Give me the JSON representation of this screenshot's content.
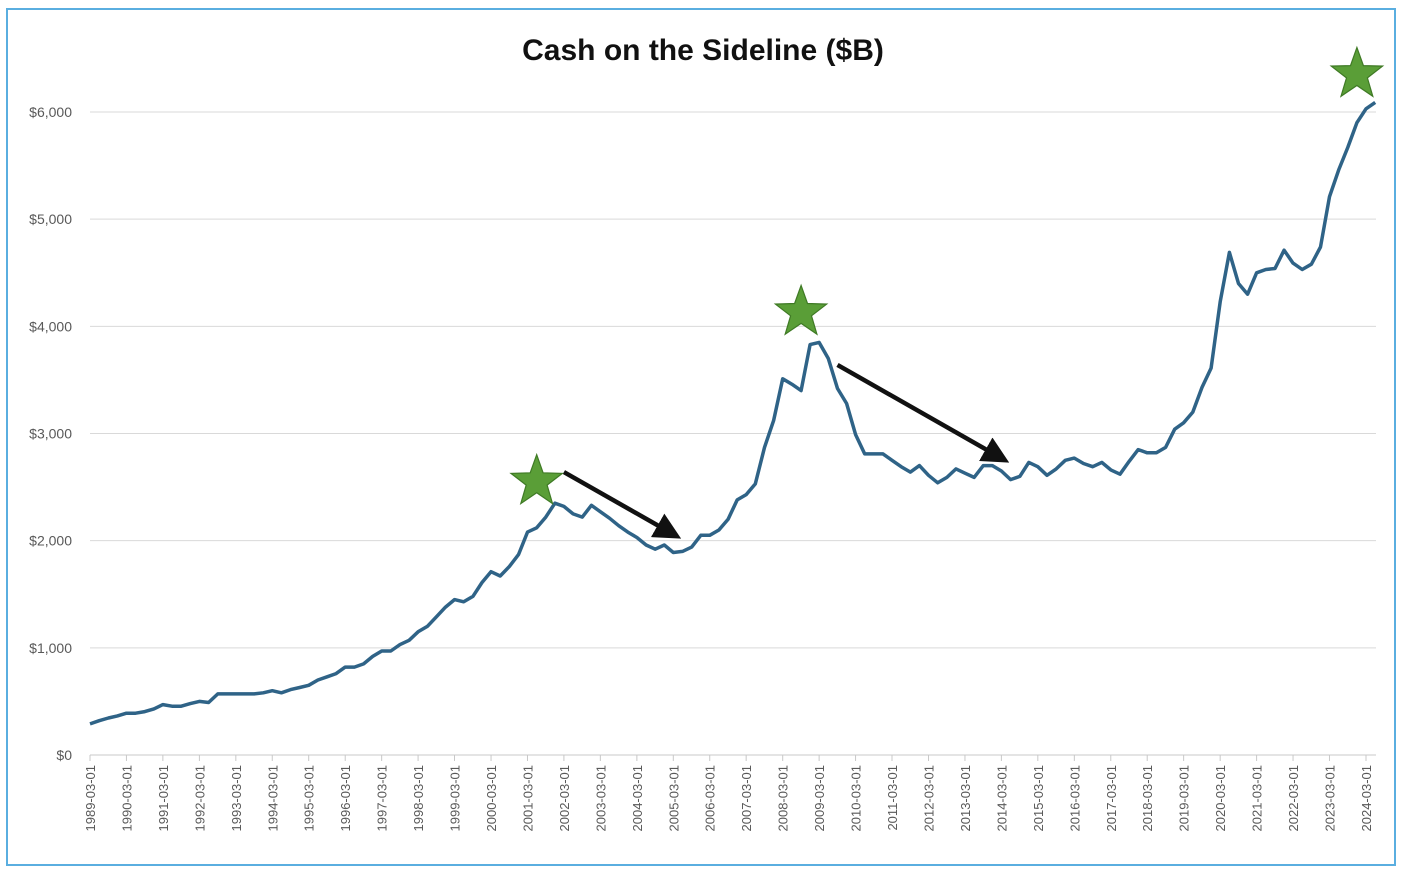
{
  "chart_data": {
    "type": "line",
    "title": "Cash on the Sideline ($B)",
    "xlabel": "",
    "ylabel": "",
    "ylim": [
      0,
      6000
    ],
    "y_ticks": [
      "$0",
      "$1,000",
      "$2,000",
      "$3,000",
      "$4,000",
      "$5,000",
      "$6,000"
    ],
    "x_ticks": [
      "1989-03-01",
      "1990-03-01",
      "1991-03-01",
      "1992-03-01",
      "1993-03-01",
      "1994-03-01",
      "1995-03-01",
      "1996-03-01",
      "1997-03-01",
      "1998-03-01",
      "1999-03-01",
      "2000-03-01",
      "2001-03-01",
      "2002-03-01",
      "2003-03-01",
      "2004-03-01",
      "2005-03-01",
      "2006-03-01",
      "2007-03-01",
      "2008-03-01",
      "2009-03-01",
      "2010-03-01",
      "2011-03-01",
      "2012-03-01",
      "2013-03-01",
      "2014-03-01",
      "2015-03-01",
      "2016-03-01",
      "2017-03-01",
      "2018-03-01",
      "2019-03-01",
      "2020-03-01",
      "2021-03-01",
      "2022-03-01",
      "2023-03-01",
      "2024-03-01"
    ],
    "grid": true,
    "legend": "none",
    "series": [
      {
        "color": "#2f6387",
        "points": [
          [
            "1989-03-01",
            290
          ],
          [
            "1989-06-01",
            320
          ],
          [
            "1989-09-01",
            345
          ],
          [
            "1989-12-01",
            365
          ],
          [
            "1990-03-01",
            390
          ],
          [
            "1990-06-01",
            390
          ],
          [
            "1990-09-01",
            405
          ],
          [
            "1990-12-01",
            430
          ],
          [
            "1991-03-01",
            470
          ],
          [
            "1991-06-01",
            455
          ],
          [
            "1991-09-01",
            455
          ],
          [
            "1991-12-01",
            480
          ],
          [
            "1992-03-01",
            500
          ],
          [
            "1992-06-01",
            490
          ],
          [
            "1992-09-01",
            570
          ],
          [
            "1992-12-01",
            570
          ],
          [
            "1993-03-01",
            570
          ],
          [
            "1993-06-01",
            570
          ],
          [
            "1993-09-01",
            570
          ],
          [
            "1993-12-01",
            580
          ],
          [
            "1994-03-01",
            600
          ],
          [
            "1994-06-01",
            580
          ],
          [
            "1994-09-01",
            610
          ],
          [
            "1994-12-01",
            630
          ],
          [
            "1995-03-01",
            650
          ],
          [
            "1995-06-01",
            700
          ],
          [
            "1995-09-01",
            730
          ],
          [
            "1995-12-01",
            760
          ],
          [
            "1996-03-01",
            820
          ],
          [
            "1996-06-01",
            820
          ],
          [
            "1996-09-01",
            850
          ],
          [
            "1996-12-01",
            920
          ],
          [
            "1997-03-01",
            970
          ],
          [
            "1997-06-01",
            970
          ],
          [
            "1997-09-01",
            1030
          ],
          [
            "1997-12-01",
            1070
          ],
          [
            "1998-03-01",
            1150
          ],
          [
            "1998-06-01",
            1200
          ],
          [
            "1998-09-01",
            1290
          ],
          [
            "1998-12-01",
            1380
          ],
          [
            "1999-03-01",
            1450
          ],
          [
            "1999-06-01",
            1430
          ],
          [
            "1999-09-01",
            1480
          ],
          [
            "1999-12-01",
            1610
          ],
          [
            "2000-03-01",
            1710
          ],
          [
            "2000-06-01",
            1670
          ],
          [
            "2000-09-01",
            1760
          ],
          [
            "2000-12-01",
            1870
          ],
          [
            "2001-03-01",
            2080
          ],
          [
            "2001-06-01",
            2120
          ],
          [
            "2001-09-01",
            2220
          ],
          [
            "2001-12-01",
            2350
          ],
          [
            "2002-03-01",
            2320
          ],
          [
            "2002-06-01",
            2250
          ],
          [
            "2002-09-01",
            2220
          ],
          [
            "2002-12-01",
            2330
          ],
          [
            "2003-03-01",
            2270
          ],
          [
            "2003-06-01",
            2210
          ],
          [
            "2003-09-01",
            2140
          ],
          [
            "2003-12-01",
            2080
          ],
          [
            "2004-03-01",
            2030
          ],
          [
            "2004-06-01",
            1960
          ],
          [
            "2004-09-01",
            1920
          ],
          [
            "2004-12-01",
            1960
          ],
          [
            "2005-03-01",
            1890
          ],
          [
            "2005-06-01",
            1900
          ],
          [
            "2005-09-01",
            1940
          ],
          [
            "2005-12-01",
            2050
          ],
          [
            "2006-03-01",
            2050
          ],
          [
            "2006-06-01",
            2100
          ],
          [
            "2006-09-01",
            2200
          ],
          [
            "2006-12-01",
            2380
          ],
          [
            "2007-03-01",
            2430
          ],
          [
            "2007-06-01",
            2530
          ],
          [
            "2007-09-01",
            2870
          ],
          [
            "2007-12-01",
            3120
          ],
          [
            "2008-03-01",
            3510
          ],
          [
            "2008-06-01",
            3460
          ],
          [
            "2008-09-01",
            3400
          ],
          [
            "2008-12-01",
            3830
          ],
          [
            "2009-03-01",
            3850
          ],
          [
            "2009-06-01",
            3700
          ],
          [
            "2009-09-01",
            3420
          ],
          [
            "2009-12-01",
            3280
          ],
          [
            "2010-03-01",
            2990
          ],
          [
            "2010-06-01",
            2810
          ],
          [
            "2010-09-01",
            2810
          ],
          [
            "2010-12-01",
            2810
          ],
          [
            "2011-03-01",
            2750
          ],
          [
            "2011-06-01",
            2690
          ],
          [
            "2011-09-01",
            2640
          ],
          [
            "2011-12-01",
            2700
          ],
          [
            "2012-03-01",
            2610
          ],
          [
            "2012-06-01",
            2540
          ],
          [
            "2012-09-01",
            2590
          ],
          [
            "2012-12-01",
            2670
          ],
          [
            "2013-03-01",
            2630
          ],
          [
            "2013-06-01",
            2590
          ],
          [
            "2013-09-01",
            2700
          ],
          [
            "2013-12-01",
            2700
          ],
          [
            "2014-03-01",
            2650
          ],
          [
            "2014-06-01",
            2570
          ],
          [
            "2014-09-01",
            2600
          ],
          [
            "2014-12-01",
            2730
          ],
          [
            "2015-03-01",
            2690
          ],
          [
            "2015-06-01",
            2610
          ],
          [
            "2015-09-01",
            2670
          ],
          [
            "2015-12-01",
            2750
          ],
          [
            "2016-03-01",
            2770
          ],
          [
            "2016-06-01",
            2720
          ],
          [
            "2016-09-01",
            2690
          ],
          [
            "2016-12-01",
            2730
          ],
          [
            "2017-03-01",
            2660
          ],
          [
            "2017-06-01",
            2620
          ],
          [
            "2017-09-01",
            2740
          ],
          [
            "2017-12-01",
            2850
          ],
          [
            "2018-03-01",
            2820
          ],
          [
            "2018-06-01",
            2820
          ],
          [
            "2018-09-01",
            2870
          ],
          [
            "2018-12-01",
            3040
          ],
          [
            "2019-03-01",
            3100
          ],
          [
            "2019-06-01",
            3200
          ],
          [
            "2019-09-01",
            3430
          ],
          [
            "2019-12-01",
            3610
          ],
          [
            "2020-03-01",
            4230
          ],
          [
            "2020-06-01",
            4690
          ],
          [
            "2020-09-01",
            4400
          ],
          [
            "2020-12-01",
            4300
          ],
          [
            "2021-03-01",
            4500
          ],
          [
            "2021-06-01",
            4530
          ],
          [
            "2021-09-01",
            4540
          ],
          [
            "2021-12-01",
            4710
          ],
          [
            "2022-03-01",
            4590
          ],
          [
            "2022-06-01",
            4530
          ],
          [
            "2022-09-01",
            4580
          ],
          [
            "2022-12-01",
            4740
          ],
          [
            "2023-03-01",
            5210
          ],
          [
            "2023-06-01",
            5460
          ],
          [
            "2023-09-01",
            5670
          ],
          [
            "2023-12-01",
            5900
          ],
          [
            "2024-03-01",
            6030
          ],
          [
            "2024-06-01",
            6090
          ]
        ]
      }
    ],
    "annotations": {
      "stars": [
        {
          "x": "2001-06-01",
          "y": 2550,
          "color": "#5a9e37"
        },
        {
          "x": "2008-09-01",
          "y": 4130,
          "color": "#5a9e37"
        },
        {
          "x": "2023-12-01",
          "y": 6350,
          "color": "#5a9e37"
        }
      ],
      "arrows": [
        {
          "from": [
            "2002-03-01",
            2640
          ],
          "to": [
            "2005-03-01",
            2060
          ],
          "color": "#111111"
        },
        {
          "from": [
            "2009-09-01",
            3640
          ],
          "to": [
            "2014-03-01",
            2770
          ],
          "color": "#111111"
        }
      ]
    }
  }
}
